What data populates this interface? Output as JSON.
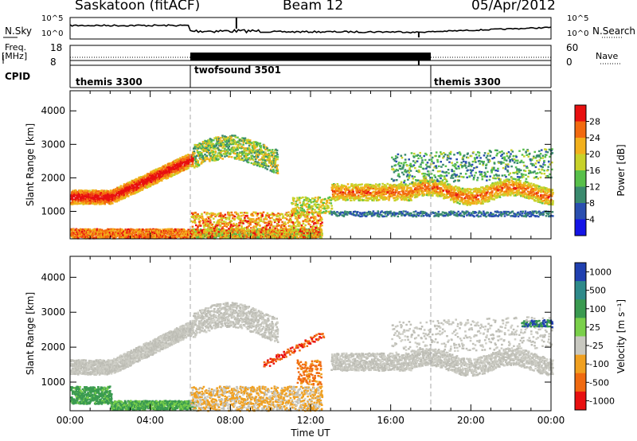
{
  "header": {
    "station": "Saskatoon (fitACF)",
    "beam": "Beam 12",
    "date": "05/Apr/2012"
  },
  "top_panels": {
    "nsky_label": "N.Sky",
    "nsky_ticks": [
      "10^5",
      "10^0"
    ],
    "nsearch_label": "N.Search",
    "nsearch_ticks": [
      "10^5",
      "10^0"
    ],
    "freq_label": "Freq.",
    "freq_unit": "[MHz]",
    "freq_ticks": [
      "18",
      "8"
    ],
    "nave_label": "Nave",
    "nave_ticks": [
      "60",
      "0"
    ],
    "cpid_label": "CPID",
    "cpid_segments": [
      {
        "name": "themis 3300",
        "start_hour": 0,
        "end_hour": 6
      },
      {
        "name": "twofsound 3501",
        "start_hour": 6,
        "end_hour": 18
      },
      {
        "name": "themis 3300",
        "start_hour": 18,
        "end_hour": 24
      }
    ]
  },
  "chart_data": [
    {
      "type": "heatmap",
      "name": "power",
      "ylabel": "Slant Range [km]",
      "xlim": [
        0,
        24
      ],
      "ylim": [
        180,
        4600
      ],
      "yticks": [
        "1000",
        "2000",
        "3000",
        "4000"
      ],
      "colorbar": {
        "label": "Power [dB]",
        "range": [
          0,
          32
        ],
        "ticks": [
          "4",
          "8",
          "12",
          "16",
          "20",
          "24",
          "28"
        ],
        "colors": [
          "#1414e6",
          "#2a4fb0",
          "#3a8a6e",
          "#58c04a",
          "#c8d22a",
          "#f2b01c",
          "#f26a10",
          "#e81010"
        ]
      }
    },
    {
      "type": "heatmap",
      "name": "velocity",
      "ylabel": "Slant Range [km]",
      "xlim": [
        0,
        24
      ],
      "ylim": [
        180,
        4600
      ],
      "yticks": [
        "1000",
        "2000",
        "3000",
        "4000"
      ],
      "xticks": [
        "00:00",
        "04:00",
        "08:00",
        "12:00",
        "16:00",
        "20:00",
        "00:00"
      ],
      "xlabel": "Time UT",
      "colorbar": {
        "label": "Velocity [m s⁻¹]",
        "ticks": [
          "1000",
          "500",
          "100",
          "25",
          "-25",
          "-100",
          "-500",
          "-1000"
        ],
        "colors": [
          "#2040b0",
          "#2e8a8a",
          "#3a9a50",
          "#7ad04a",
          "#c8c8c0",
          "#f0a020",
          "#f06a10",
          "#e81010"
        ]
      }
    }
  ]
}
